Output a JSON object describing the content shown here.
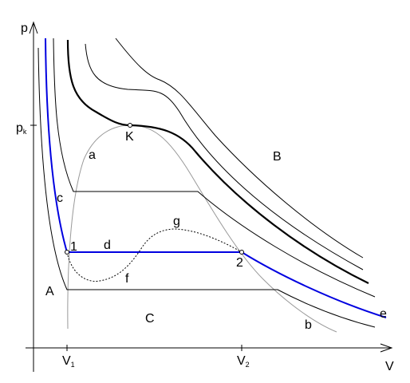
{
  "axes": {
    "y": {
      "label": "p"
    },
    "x": {
      "label": "V"
    }
  },
  "ticks": {
    "pk": {
      "base": "p",
      "sub": "k"
    },
    "v1": {
      "base": "V",
      "sub": "1"
    },
    "v2": {
      "base": "V",
      "sub": "2"
    }
  },
  "points": {
    "critical": "K",
    "state1": "1",
    "state2": "2"
  },
  "regions": {
    "liquid": "A",
    "gas": "B",
    "two_phase": "C"
  },
  "curve_labels": {
    "a": "a",
    "b": "b",
    "c": "c",
    "d": "d",
    "e": "e",
    "f": "f",
    "g": "g"
  }
}
